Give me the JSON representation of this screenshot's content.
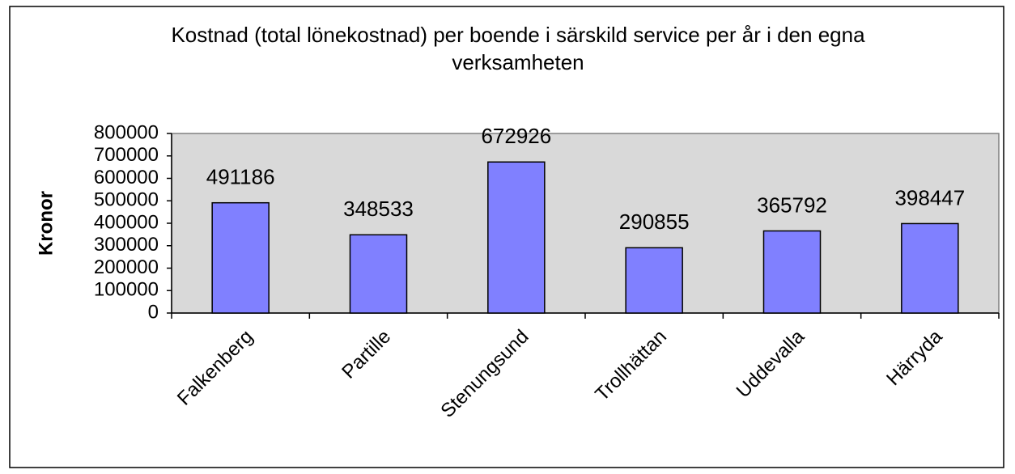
{
  "chart_data": {
    "type": "bar",
    "title": "Kostnad (total lönekostnad) per boende i särskild service per år i den egna verksamheten",
    "y_axis_label": "Kronor",
    "categories": [
      "Falkenberg",
      "Partille",
      "Stenungsund",
      "Trollhättan",
      "Uddevalla",
      "Härryda"
    ],
    "values": [
      491186,
      348533,
      672926,
      290855,
      365792,
      398447
    ],
    "color": "#8080ff",
    "ylim": [
      0,
      800000
    ],
    "yticks": [
      0,
      100000,
      200000,
      300000,
      400000,
      500000,
      600000,
      700000,
      800000
    ],
    "grid": false
  }
}
